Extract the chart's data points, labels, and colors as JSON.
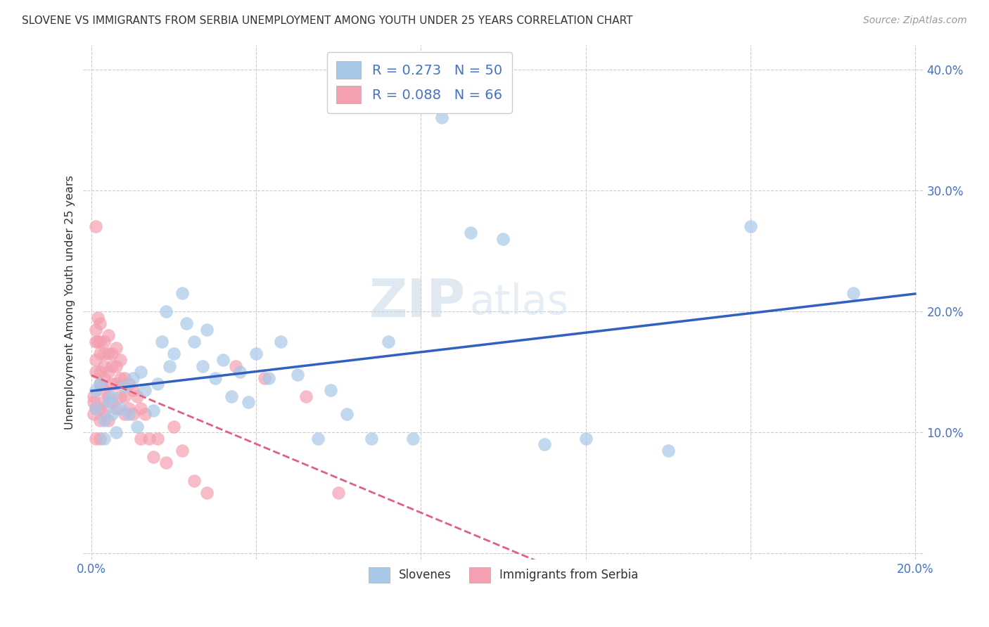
{
  "title": "SLOVENE VS IMMIGRANTS FROM SERBIA UNEMPLOYMENT AMONG YOUTH UNDER 25 YEARS CORRELATION CHART",
  "source": "Source: ZipAtlas.com",
  "ylabel": "Unemployment Among Youth under 25 years",
  "r_slovenes": 0.273,
  "n_slovenes": 50,
  "r_serbia": 0.088,
  "n_serbia": 66,
  "xlim": [
    -0.002,
    0.202
  ],
  "ylim": [
    -0.005,
    0.42
  ],
  "xticks": [
    0.0,
    0.04,
    0.08,
    0.12,
    0.16,
    0.2
  ],
  "yticks": [
    0.0,
    0.1,
    0.2,
    0.3,
    0.4
  ],
  "color_slovenes": "#a8c8e8",
  "color_serbia": "#f4a0b0",
  "trendline_slovenes": "#3060c0",
  "trendline_serbia": "#e06080",
  "background_color": "#ffffff",
  "slovenes_x": [
    0.001,
    0.001,
    0.002,
    0.003,
    0.003,
    0.004,
    0.005,
    0.005,
    0.006,
    0.007,
    0.008,
    0.009,
    0.01,
    0.011,
    0.012,
    0.013,
    0.015,
    0.016,
    0.017,
    0.018,
    0.019,
    0.02,
    0.022,
    0.023,
    0.025,
    0.027,
    0.028,
    0.03,
    0.032,
    0.034,
    0.036,
    0.038,
    0.04,
    0.043,
    0.046,
    0.05,
    0.055,
    0.058,
    0.062,
    0.068,
    0.072,
    0.078,
    0.085,
    0.092,
    0.1,
    0.11,
    0.12,
    0.14,
    0.16,
    0.185
  ],
  "slovenes_y": [
    0.135,
    0.12,
    0.14,
    0.11,
    0.095,
    0.125,
    0.115,
    0.13,
    0.1,
    0.12,
    0.138,
    0.115,
    0.145,
    0.105,
    0.15,
    0.135,
    0.118,
    0.14,
    0.175,
    0.2,
    0.155,
    0.165,
    0.215,
    0.19,
    0.175,
    0.155,
    0.185,
    0.145,
    0.16,
    0.13,
    0.15,
    0.125,
    0.165,
    0.145,
    0.175,
    0.148,
    0.095,
    0.135,
    0.115,
    0.095,
    0.175,
    0.095,
    0.36,
    0.265,
    0.26,
    0.09,
    0.095,
    0.085,
    0.27,
    0.215
  ],
  "serbia_x": [
    0.0005,
    0.0005,
    0.0005,
    0.001,
    0.001,
    0.001,
    0.001,
    0.001,
    0.001,
    0.001,
    0.0015,
    0.0015,
    0.002,
    0.002,
    0.002,
    0.002,
    0.002,
    0.002,
    0.002,
    0.002,
    0.003,
    0.003,
    0.003,
    0.003,
    0.003,
    0.003,
    0.003,
    0.004,
    0.004,
    0.004,
    0.004,
    0.004,
    0.005,
    0.005,
    0.005,
    0.005,
    0.006,
    0.006,
    0.006,
    0.006,
    0.007,
    0.007,
    0.007,
    0.008,
    0.008,
    0.008,
    0.009,
    0.009,
    0.01,
    0.01,
    0.011,
    0.012,
    0.012,
    0.013,
    0.014,
    0.015,
    0.016,
    0.018,
    0.02,
    0.022,
    0.025,
    0.028,
    0.035,
    0.042,
    0.052,
    0.06
  ],
  "serbia_y": [
    0.13,
    0.125,
    0.115,
    0.27,
    0.185,
    0.175,
    0.16,
    0.15,
    0.12,
    0.095,
    0.195,
    0.175,
    0.19,
    0.175,
    0.165,
    0.15,
    0.14,
    0.12,
    0.11,
    0.095,
    0.175,
    0.165,
    0.155,
    0.145,
    0.135,
    0.125,
    0.115,
    0.18,
    0.165,
    0.15,
    0.13,
    0.11,
    0.165,
    0.155,
    0.14,
    0.125,
    0.17,
    0.155,
    0.14,
    0.12,
    0.16,
    0.145,
    0.13,
    0.145,
    0.13,
    0.115,
    0.14,
    0.12,
    0.135,
    0.115,
    0.13,
    0.12,
    0.095,
    0.115,
    0.095,
    0.08,
    0.095,
    0.075,
    0.105,
    0.085,
    0.06,
    0.05,
    0.155,
    0.145,
    0.13,
    0.05
  ]
}
